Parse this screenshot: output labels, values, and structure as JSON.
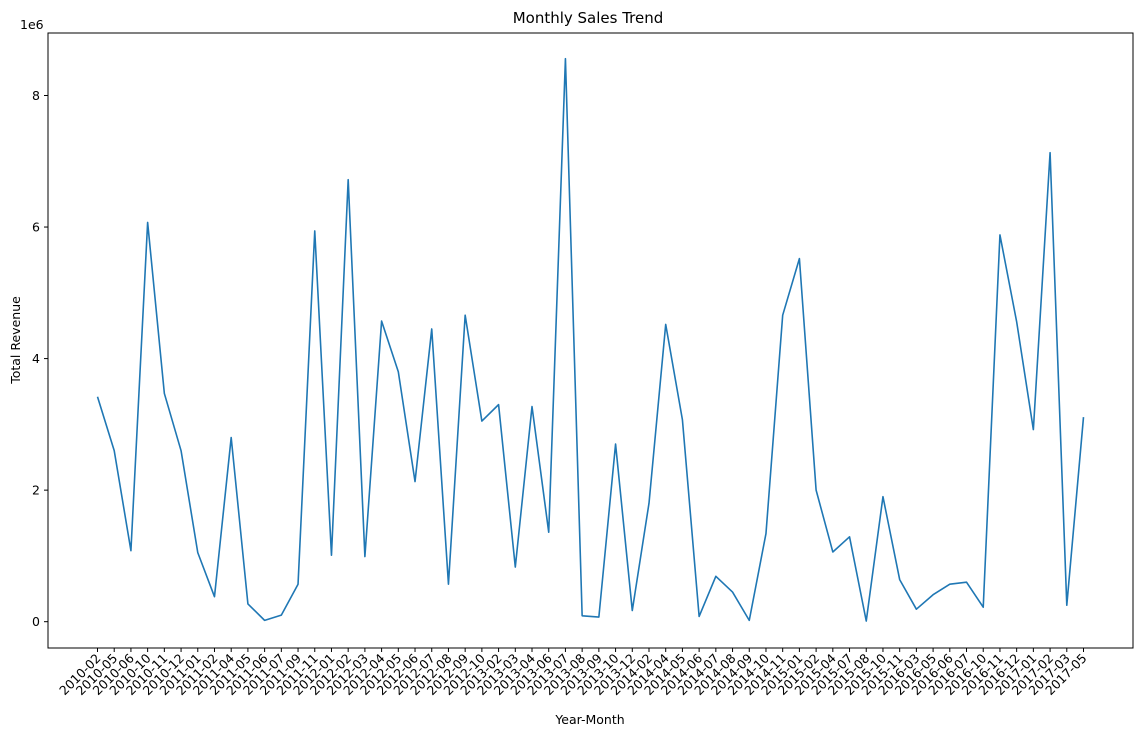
{
  "chart_data": {
    "type": "line",
    "title": "Monthly Sales Trend",
    "xlabel": "Year-Month",
    "ylabel": "Total Revenue",
    "y_offset_text": "1e6",
    "y_scale_factor": 1000000,
    "ylim": [
      -400000,
      8950000
    ],
    "yticks": [
      0,
      2000000,
      4000000,
      6000000,
      8000000
    ],
    "ytick_labels": [
      "0",
      "2",
      "4",
      "6",
      "8"
    ],
    "grid": false,
    "line_color": "#1f77b4",
    "categories": [
      "2010-02",
      "2010-05",
      "2010-06",
      "2010-10",
      "2010-11",
      "2010-12",
      "2011-01",
      "2011-02",
      "2011-04",
      "2011-05",
      "2011-06",
      "2011-07",
      "2011-09",
      "2011-11",
      "2012-01",
      "2012-02",
      "2012-03",
      "2012-04",
      "2012-05",
      "2012-06",
      "2012-07",
      "2012-08",
      "2012-09",
      "2012-10",
      "2013-02",
      "2013-03",
      "2013-04",
      "2013-06",
      "2013-07",
      "2013-08",
      "2013-09",
      "2013-10",
      "2013-12",
      "2014-02",
      "2014-04",
      "2014-05",
      "2014-06",
      "2014-07",
      "2014-08",
      "2014-09",
      "2014-10",
      "2014-11",
      "2015-01",
      "2015-02",
      "2015-04",
      "2015-07",
      "2015-08",
      "2015-10",
      "2015-11",
      "2016-03",
      "2016-05",
      "2016-06",
      "2016-07",
      "2016-10",
      "2016-11",
      "2016-12",
      "2017-01",
      "2017-02",
      "2017-03",
      "2017-05"
    ],
    "series": [
      {
        "values": [
          3420000,
          2600000,
          1080000,
          6070000,
          3470000,
          2600000,
          1050000,
          380000,
          2800000,
          270000,
          20000,
          100000,
          570000,
          5940000,
          1010000,
          6720000,
          990000,
          4570000,
          3800000,
          2130000,
          4450000,
          570000,
          4660000,
          3050000,
          3300000,
          830000,
          3270000,
          1360000,
          8560000,
          90000,
          70000,
          2700000,
          170000,
          1800000,
          4520000,
          3070000,
          80000,
          690000,
          450000,
          20000,
          1340000,
          4660000,
          5520000,
          2000000,
          1060000,
          1290000,
          10000,
          1900000,
          640000,
          190000,
          410000,
          570000,
          600000,
          220000,
          5880000,
          4560000,
          2920000,
          7130000,
          250000,
          3110000
        ]
      }
    ]
  }
}
